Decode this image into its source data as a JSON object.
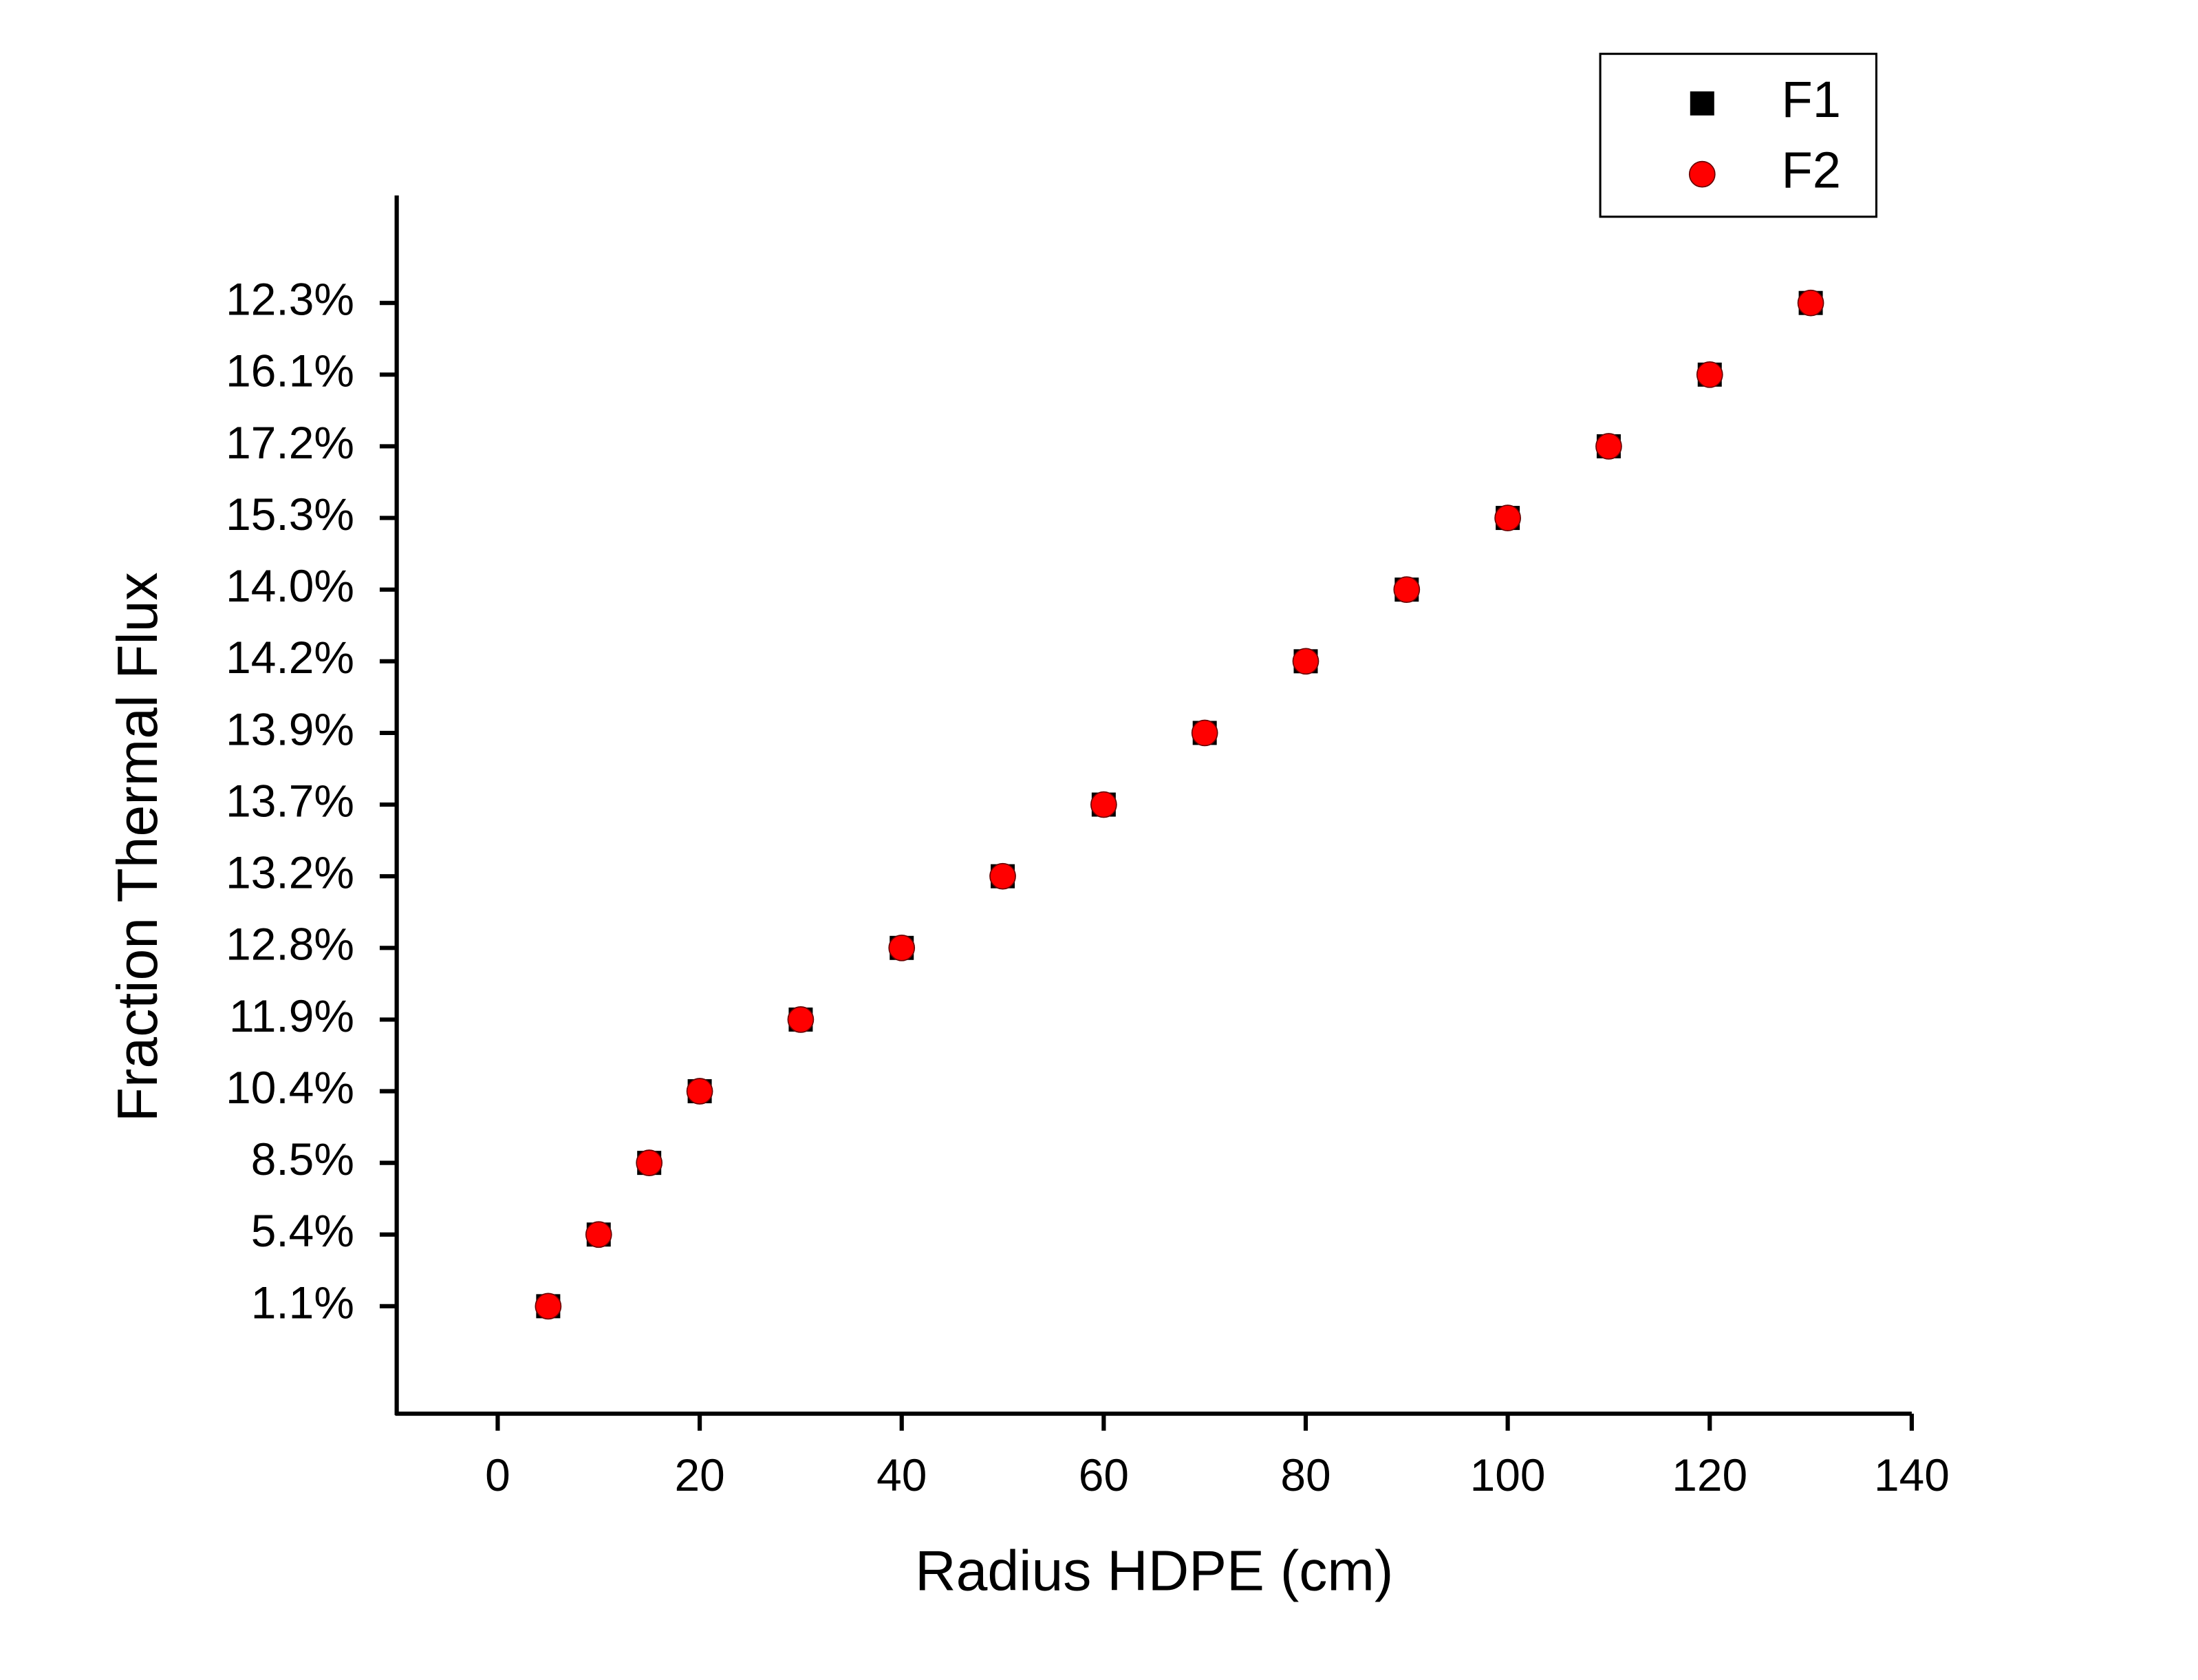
{
  "chart_data": {
    "type": "scatter",
    "x_label": "Radius HDPE (cm)",
    "y_label": "Fraction Thermal Flux",
    "xlim": [
      -10,
      140
    ],
    "xticks": [
      0,
      20,
      40,
      60,
      80,
      100,
      120,
      140
    ],
    "ylim": [
      -0.5,
      16.5
    ],
    "yticks": [
      {
        "value": 1,
        "label": "1.1%"
      },
      {
        "value": 2,
        "label": "5.4%"
      },
      {
        "value": 3,
        "label": "8.5%"
      },
      {
        "value": 4,
        "label": "10.4%"
      },
      {
        "value": 5,
        "label": "11.9%"
      },
      {
        "value": 6,
        "label": "12.8%"
      },
      {
        "value": 7,
        "label": "13.2%"
      },
      {
        "value": 8,
        "label": "13.7%"
      },
      {
        "value": 9,
        "label": "13.9%"
      },
      {
        "value": 10,
        "label": "14.2%"
      },
      {
        "value": 11,
        "label": "14.0%"
      },
      {
        "value": 12,
        "label": "15.3%"
      },
      {
        "value": 13,
        "label": "17.2%"
      },
      {
        "value": 14,
        "label": "16.1%"
      },
      {
        "value": 15,
        "label": "12.3%"
      }
    ],
    "legend": "top-right",
    "series": [
      {
        "name": "F1",
        "color": "#000000",
        "marker": "square",
        "x": [
          5,
          10,
          15,
          20,
          30,
          40,
          50,
          60,
          70,
          80,
          90,
          100,
          110,
          120,
          130
        ],
        "values": [
          1,
          2,
          3,
          4,
          5,
          6,
          7,
          8,
          9,
          10,
          11,
          12,
          13,
          14,
          15
        ]
      },
      {
        "name": "F2",
        "color": "#ff0000",
        "marker": "circle",
        "x": [
          5,
          10,
          15,
          20,
          30,
          40,
          50,
          60,
          70,
          80,
          90,
          100,
          110,
          120,
          130
        ],
        "values": [
          1,
          2,
          3,
          4,
          5,
          6,
          7,
          8,
          9,
          10,
          11,
          12,
          13,
          14,
          15
        ]
      }
    ]
  }
}
